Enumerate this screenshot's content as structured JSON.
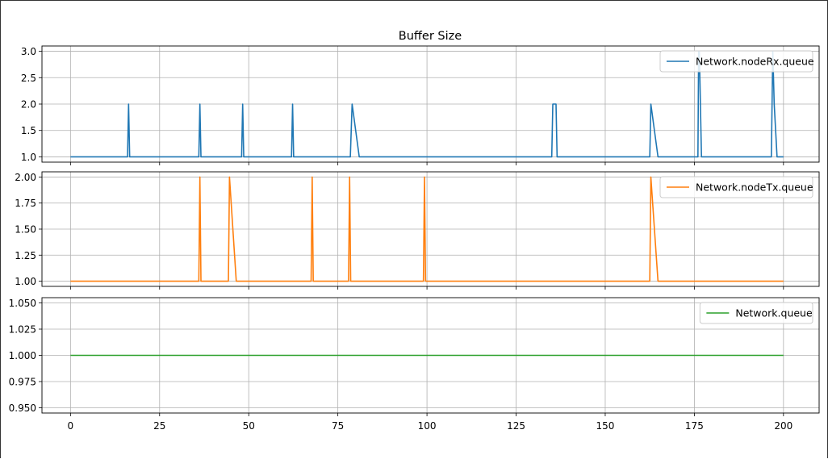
{
  "chart_data": {
    "type": "line",
    "title": "Buffer Size",
    "xlabel": "",
    "xlim": [
      -8,
      210
    ],
    "x_ticks": [
      0,
      25,
      50,
      75,
      100,
      125,
      150,
      175,
      200
    ],
    "grid": true,
    "legend_placement": "top-right",
    "subplots": [
      {
        "ylabel": "",
        "ylim": [
          0.9,
          3.1
        ],
        "y_ticks": [
          1.0,
          1.5,
          2.0,
          2.5,
          3.0
        ],
        "y_tick_labels": [
          "1.0",
          "1.5",
          "2.0",
          "2.5",
          "3.0"
        ],
        "series": [
          {
            "name": "Network.nodeRx.queue",
            "color": "#1f77b4",
            "x": [
              0,
              16,
              16.3,
              16.6,
              36,
              36.3,
              36.6,
              48,
              48.3,
              48.6,
              62,
              62.3,
              62.6,
              78.5,
              79,
              81,
              135,
              135.3,
              136.2,
              136.5,
              162.5,
              162.8,
              164.8,
              176,
              176.2,
              176.4,
              177,
              196.6,
              197,
              197.4,
              198.2,
              198.6,
              200
            ],
            "values": [
              1,
              1,
              2,
              1,
              1,
              2,
              1,
              1,
              2,
              1,
              1,
              2,
              1,
              1,
              2,
              1,
              1,
              2,
              2,
              1,
              1,
              2,
              1,
              1,
              3,
              3,
              1,
              1,
              3,
              2,
              1,
              1,
              1
            ]
          }
        ]
      },
      {
        "ylabel": "",
        "ylim": [
          0.95,
          2.05
        ],
        "y_ticks": [
          1.0,
          1.25,
          1.5,
          1.75,
          2.0
        ],
        "y_tick_labels": [
          "1.00",
          "1.25",
          "1.50",
          "1.75",
          "2.00"
        ],
        "series": [
          {
            "name": "Network.nodeTx.queue",
            "color": "#ff7f0e",
            "x": [
              0,
              36,
              36.3,
              36.6,
              44.3,
              44.6,
              46.5,
              67.5,
              67.8,
              68.1,
              78,
              78.3,
              78.6,
              99,
              99.3,
              99.6,
              162.5,
              162.8,
              164.8,
              200
            ],
            "values": [
              1,
              1,
              2,
              1,
              1,
              2,
              1,
              1,
              2,
              1,
              1,
              2,
              1,
              1,
              2,
              1,
              1,
              2,
              1,
              1
            ]
          }
        ]
      },
      {
        "ylabel": "",
        "ylim": [
          0.945,
          1.055
        ],
        "y_ticks": [
          0.95,
          0.975,
          1.0,
          1.025,
          1.05
        ],
        "y_tick_labels": [
          "0.950",
          "0.975",
          "1.000",
          "1.025",
          "1.050"
        ],
        "series": [
          {
            "name": "Network.queue",
            "color": "#2ca02c",
            "x": [
              0,
              200
            ],
            "values": [
              1,
              1
            ]
          }
        ]
      }
    ]
  }
}
